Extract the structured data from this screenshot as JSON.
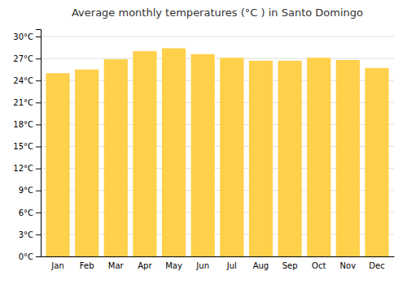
{
  "chart_data": {
    "type": "bar",
    "title": "Average monthly temperatures (°C ) in Santo Domingo",
    "categories": [
      "Jan",
      "Feb",
      "Mar",
      "Apr",
      "May",
      "Jun",
      "Jul",
      "Aug",
      "Sep",
      "Oct",
      "Nov",
      "Dec"
    ],
    "values": [
      25.0,
      25.5,
      26.9,
      28.0,
      28.4,
      27.6,
      27.1,
      26.7,
      26.7,
      27.1,
      26.8,
      25.7
    ],
    "color": "#FFD04A",
    "ylim": [
      0,
      31
    ],
    "yticks": [
      {
        "value": 0,
        "label": "0°C"
      },
      {
        "value": 3,
        "label": "3°C"
      },
      {
        "value": 6,
        "label": "6°C"
      },
      {
        "value": 9,
        "label": "9°C"
      },
      {
        "value": 12,
        "label": "12°C"
      },
      {
        "value": 15,
        "label": "15°C"
      },
      {
        "value": 18,
        "label": "18°C"
      },
      {
        "value": 21,
        "label": "21°C"
      },
      {
        "value": 24,
        "label": "24°C"
      },
      {
        "value": 27,
        "label": "27°C"
      },
      {
        "value": 30,
        "label": "30°C"
      }
    ],
    "grid": true
  }
}
